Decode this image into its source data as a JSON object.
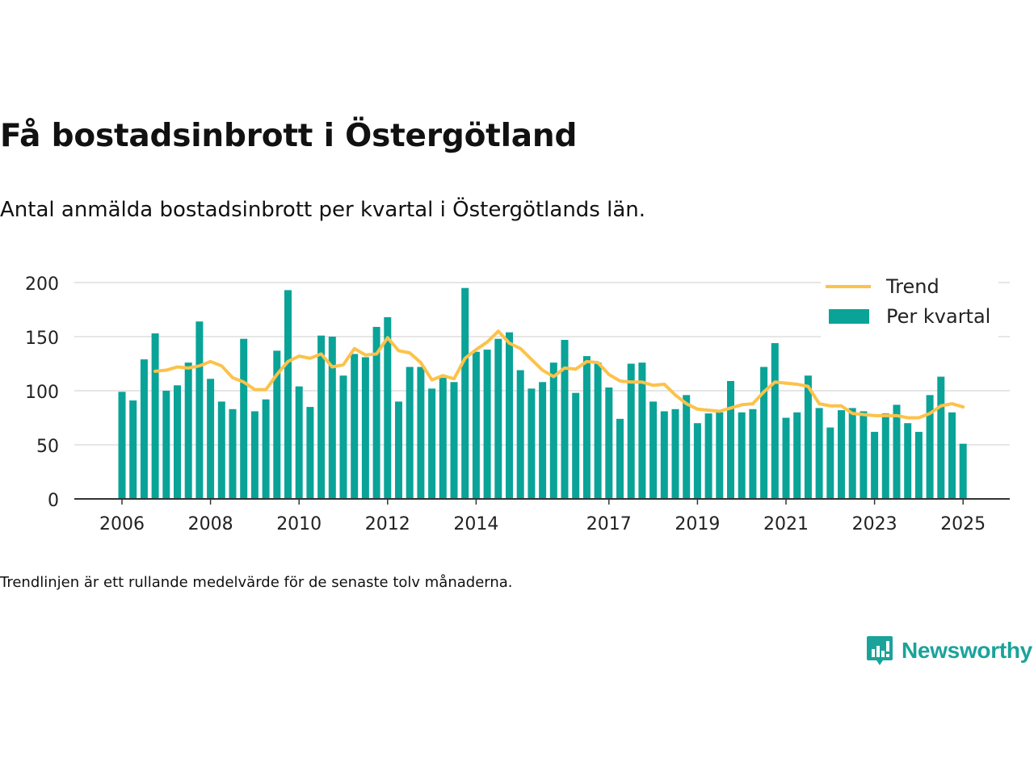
{
  "title": "Få bostadsinbrott i Östergötland",
  "subtitle": "Antal anmälda bostadsinbrott per kvartal i Östergötlands län.",
  "footnote": "Trendlinjen är ett rullande medelvärde för de senaste tolv månaderna.",
  "brand": {
    "name": "Newsworthy",
    "color": "#1aa39a",
    "icon": "bar-chart-speech-bubble-icon"
  },
  "colors": {
    "bar": "#0aa398",
    "trend": "#fcc24a",
    "grid": "#dddddd",
    "axis": "#333333"
  },
  "chart_data": {
    "type": "bar",
    "ylim": [
      0,
      200
    ],
    "yticks": [
      0,
      50,
      100,
      150,
      200
    ],
    "xtick_labels": [
      {
        "label": "2006",
        "year": 2006.0
      },
      {
        "label": "2008",
        "year": 2008.0
      },
      {
        "label": "2010",
        "year": 2010.0
      },
      {
        "label": "2012",
        "year": 2012.0
      },
      {
        "label": "2014",
        "year": 2014.0
      },
      {
        "label": "2017",
        "year": 2017.0
      },
      {
        "label": "2019",
        "year": 2019.0
      },
      {
        "label": "2021",
        "year": 2021.0
      },
      {
        "label": "2023",
        "year": 2023.0
      },
      {
        "label": "2025",
        "year": 2025.0
      }
    ],
    "grid": true,
    "legend_position": "top-right",
    "series": [
      {
        "name": "Per kvartal",
        "type": "bar",
        "start": "2006-Q1",
        "values": [
          99,
          91,
          129,
          153,
          100,
          105,
          126,
          164,
          111,
          90,
          83,
          148,
          81,
          92,
          137,
          193,
          104,
          85,
          151,
          150,
          114,
          134,
          131,
          159,
          168,
          90,
          122,
          122,
          102,
          112,
          108,
          195,
          136,
          138,
          148,
          154,
          119,
          102,
          108,
          126,
          147,
          98,
          132,
          126,
          103,
          74,
          125,
          126,
          90,
          81,
          83,
          96,
          70,
          79,
          80,
          109,
          80,
          83,
          122,
          144,
          75,
          80,
          114,
          84,
          66,
          82,
          84,
          81,
          62,
          79,
          87,
          70,
          62,
          96,
          113,
          80,
          51
        ]
      },
      {
        "name": "Trend",
        "type": "line",
        "start": "2006-Q4",
        "values": [
          118,
          119,
          122,
          121,
          123,
          127,
          123,
          112,
          108,
          101,
          101,
          115,
          127,
          132,
          130,
          134,
          122,
          124,
          139,
          133,
          134,
          149,
          137,
          135,
          126,
          110,
          114,
          111,
          130,
          138,
          145,
          155,
          144,
          139,
          129,
          119,
          113,
          121,
          120,
          127,
          126,
          115,
          109,
          108,
          108,
          105,
          106,
          96,
          88,
          83,
          82,
          81,
          84,
          87,
          88,
          99,
          108,
          107,
          106,
          104,
          88,
          86,
          86,
          79,
          78,
          77,
          77,
          77,
          75,
          75,
          79,
          86,
          88,
          85
        ]
      }
    ]
  }
}
